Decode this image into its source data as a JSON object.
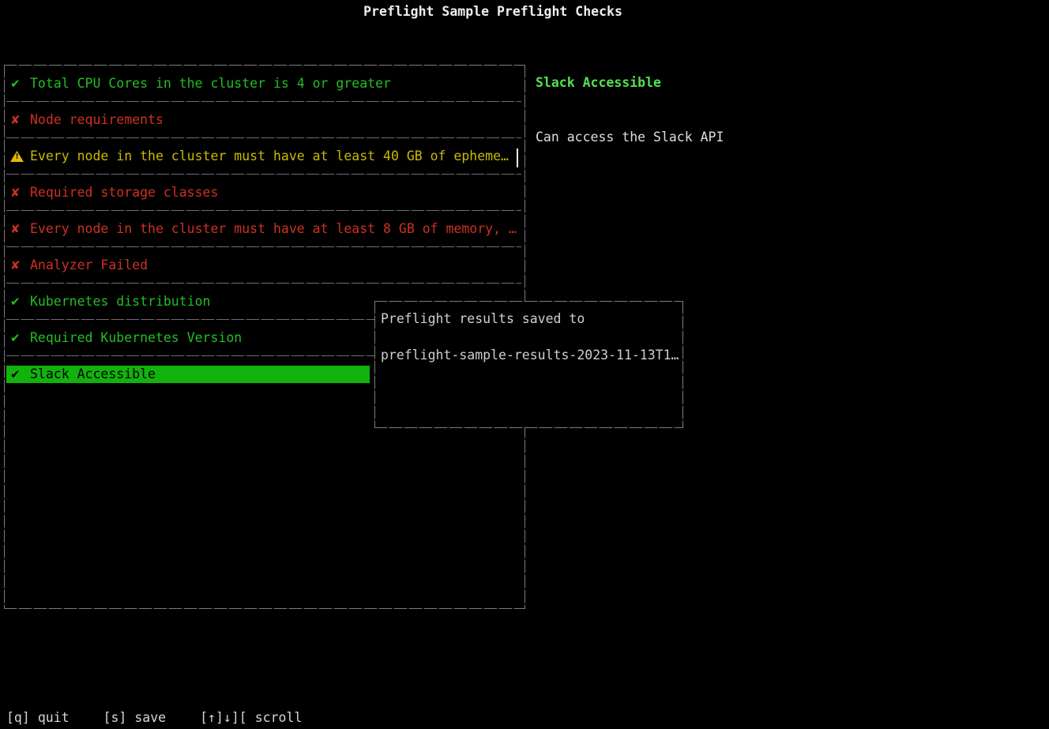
{
  "title": "Preflight Sample Preflight Checks",
  "colors": {
    "background": "#000000",
    "pass_green": "#23be23",
    "fail_red": "#cd3122",
    "warn_yellow": "#c9ba00",
    "warn_triangle": "#e5b800",
    "selected_bg": "#11b20d",
    "selected_fg": "#000000",
    "detail_title_green": "#52e052",
    "text_light": "#dedede",
    "border_gray": "#7c7c7c"
  },
  "icons": {
    "pass": "✔",
    "fail": "✘",
    "warn": "⚠",
    "warn_mark": "!"
  },
  "checks": [
    {
      "status": "pass",
      "selected": false,
      "label": "Total CPU Cores in the cluster is 4 or greater"
    },
    {
      "status": "fail",
      "selected": false,
      "label": "Node requirements"
    },
    {
      "status": "warn",
      "selected": false,
      "label": "Every node in the cluster must have at least 40 GB of epheme…"
    },
    {
      "status": "fail",
      "selected": false,
      "label": "Required storage classes"
    },
    {
      "status": "fail",
      "selected": false,
      "label": "Every node in the cluster must have at least 8 GB of memory, …"
    },
    {
      "status": "fail",
      "selected": false,
      "label": "Analyzer Failed"
    },
    {
      "status": "pass",
      "selected": false,
      "label": "Kubernetes distribution"
    },
    {
      "status": "pass",
      "selected": false,
      "label": "Required Kubernetes Version"
    },
    {
      "status": "pass",
      "selected": true,
      "label": "Slack Accessible"
    }
  ],
  "detail": {
    "title": "Slack Accessible",
    "message": "Can access the Slack API"
  },
  "modal": {
    "line1": "Preflight results saved to",
    "line2": "preflight-sample-results-2023-11-13T1…"
  },
  "statusbar": {
    "hints": [
      {
        "keys": "[q]",
        "action": "quit"
      },
      {
        "keys": "[s]",
        "action": "save"
      },
      {
        "keys": "[↑]↓][",
        "action": "scroll"
      }
    ]
  }
}
